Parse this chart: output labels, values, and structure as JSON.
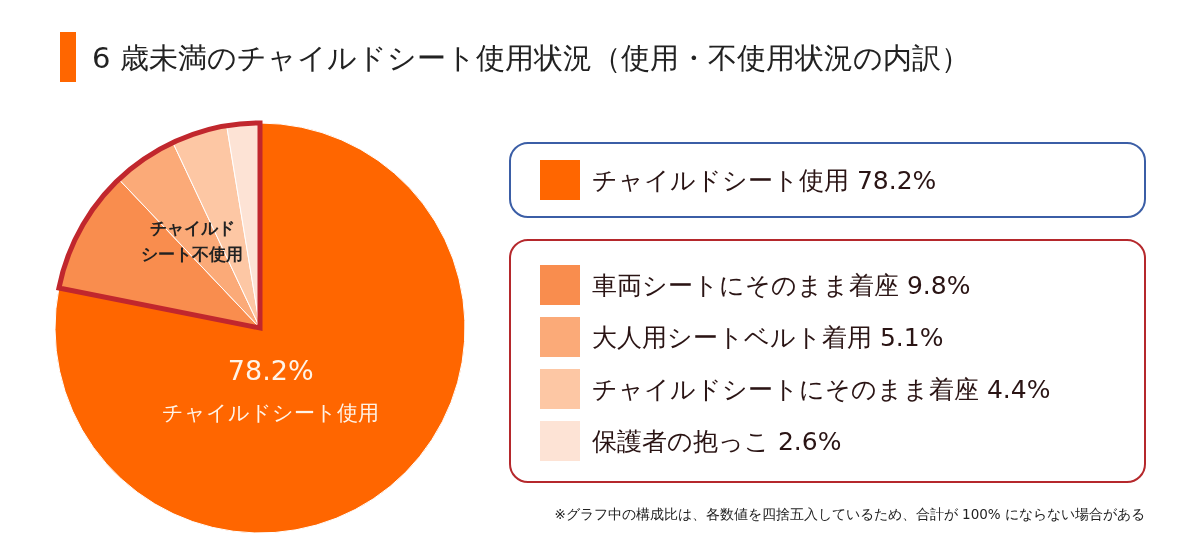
{
  "chart_data": {
    "type": "pie",
    "title": "6 歳未満のチャイルドシート使用状況（使用・不使用状況の内訳）",
    "categories": [
      "チャイルドシート使用",
      "車両シートにそのまま着座",
      "大人用シートベルト着用",
      "チャイルドシートにそのまま着座",
      "保護者の抱っこ"
    ],
    "values": [
      78.2,
      9.8,
      5.1,
      4.4,
      2.6
    ],
    "value_labels": [
      "78.2%",
      "9.8%",
      "5.1%",
      "4.4%",
      "2.6%"
    ],
    "colors": [
      "#ff6600",
      "#f98d4e",
      "#fbaa78",
      "#fdc7a4",
      "#fde3d5"
    ],
    "legend": "right",
    "annotations": [
      "チャイルドシート不使用",
      "※グラフ中の構成比は、各数値を四捨五入しているため、合計が 100% にならない場合がある"
    ]
  }
}
